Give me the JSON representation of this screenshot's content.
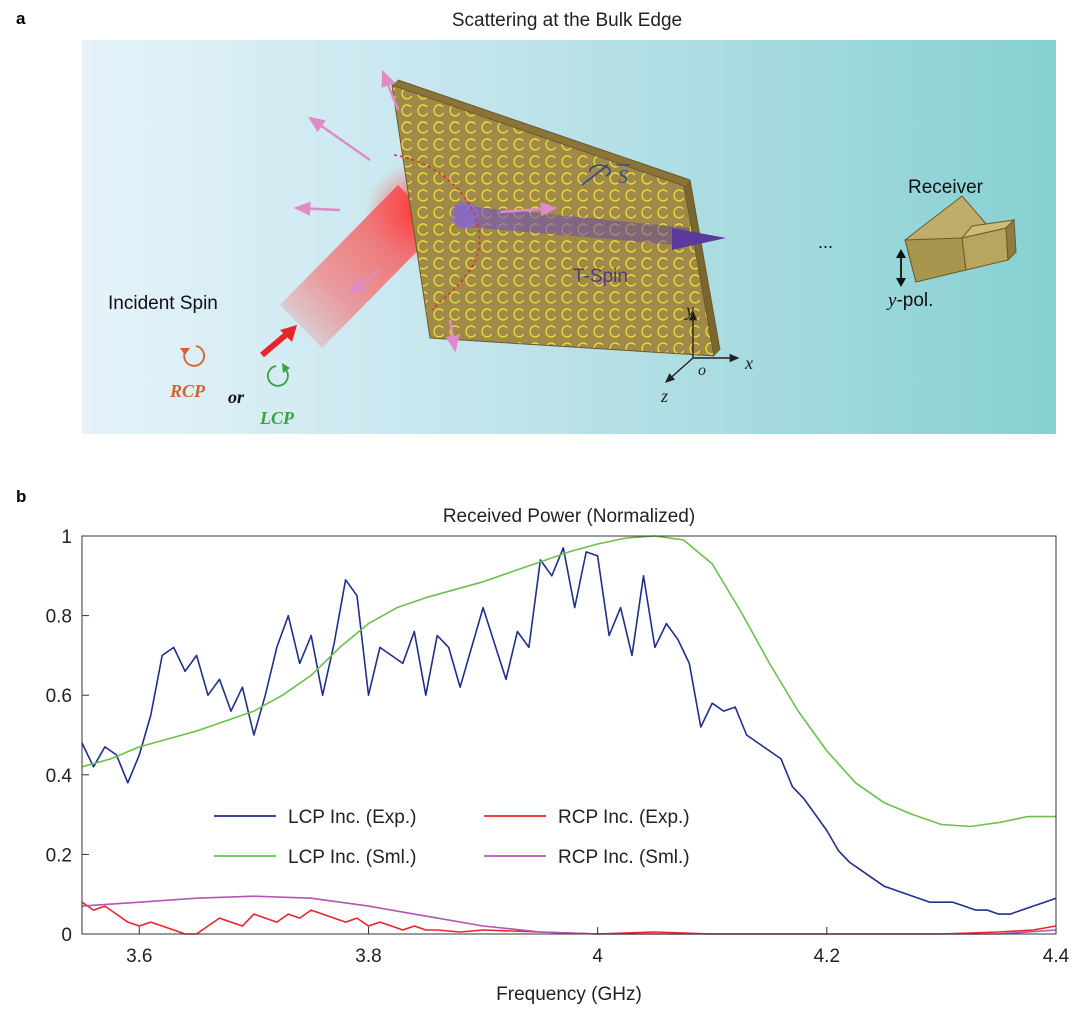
{
  "panel_a": {
    "label": "a",
    "title": "Scattering at the Bulk Edge",
    "incident_label": "Incident Spin",
    "rcp": "RCP",
    "or": "or",
    "lcp": "LCP",
    "spin_vector": "S",
    "tspin": "T-Spin",
    "receiver": "Receiver",
    "ypol_var": "y",
    "ypol_suffix": "-pol.",
    "ellipsis": "...",
    "axis_x": "x",
    "axis_y": "y",
    "axis_z": "z",
    "axis_o": "o",
    "colors": {
      "rcp": "#d4622a",
      "lcp": "#3aa33a",
      "scatter_arrows": "#e08ac8",
      "transmit_arrow": "#5a3a9a",
      "slab": "#a08a4a",
      "rings": "#f2e130"
    }
  },
  "panel_b": {
    "label": "b",
    "chart_data": {
      "type": "line",
      "title": "Received Power (Normalized)",
      "xlabel": "Frequency (GHz)",
      "ylabel": "",
      "xlim": [
        3.55,
        4.4
      ],
      "ylim": [
        0,
        1
      ],
      "xticks": [
        3.6,
        3.8,
        4.0,
        4.2,
        4.4
      ],
      "xtick_labels": [
        "3.6",
        "3.8",
        "4",
        "4.2",
        "4.4"
      ],
      "yticks": [
        0,
        0.2,
        0.4,
        0.6,
        0.8,
        1.0
      ],
      "ytick_labels": [
        "0",
        "0.2",
        "0.4",
        "0.6",
        "0.8",
        "1"
      ],
      "grid": false,
      "legend_position": "lower-center",
      "series": [
        {
          "name": "LCP Inc. (Exp.)",
          "color": "#1f2f8a",
          "x": [
            3.55,
            3.56,
            3.57,
            3.58,
            3.59,
            3.6,
            3.61,
            3.62,
            3.63,
            3.64,
            3.65,
            3.66,
            3.67,
            3.68,
            3.69,
            3.7,
            3.71,
            3.72,
            3.73,
            3.74,
            3.75,
            3.76,
            3.77,
            3.78,
            3.79,
            3.8,
            3.81,
            3.82,
            3.83,
            3.84,
            3.85,
            3.86,
            3.87,
            3.88,
            3.89,
            3.9,
            3.91,
            3.92,
            3.93,
            3.94,
            3.95,
            3.96,
            3.97,
            3.98,
            3.99,
            4.0,
            4.01,
            4.02,
            4.03,
            4.04,
            4.05,
            4.06,
            4.07,
            4.08,
            4.09,
            4.1,
            4.11,
            4.12,
            4.13,
            4.14,
            4.15,
            4.16,
            4.17,
            4.18,
            4.19,
            4.2,
            4.21,
            4.22,
            4.23,
            4.24,
            4.25,
            4.26,
            4.27,
            4.28,
            4.29,
            4.3,
            4.31,
            4.32,
            4.33,
            4.34,
            4.35,
            4.36,
            4.37,
            4.38,
            4.39,
            4.4
          ],
          "y": [
            0.48,
            0.42,
            0.47,
            0.45,
            0.38,
            0.45,
            0.55,
            0.7,
            0.72,
            0.66,
            0.7,
            0.6,
            0.64,
            0.56,
            0.62,
            0.5,
            0.6,
            0.72,
            0.8,
            0.68,
            0.75,
            0.6,
            0.73,
            0.89,
            0.85,
            0.6,
            0.72,
            0.7,
            0.68,
            0.76,
            0.6,
            0.75,
            0.72,
            0.62,
            0.72,
            0.82,
            0.73,
            0.64,
            0.76,
            0.72,
            0.94,
            0.9,
            0.97,
            0.82,
            0.96,
            0.95,
            0.75,
            0.82,
            0.7,
            0.9,
            0.72,
            0.78,
            0.74,
            0.68,
            0.52,
            0.58,
            0.56,
            0.57,
            0.5,
            0.48,
            0.46,
            0.44,
            0.37,
            0.34,
            0.3,
            0.26,
            0.21,
            0.18,
            0.16,
            0.14,
            0.12,
            0.11,
            0.1,
            0.09,
            0.08,
            0.08,
            0.08,
            0.07,
            0.06,
            0.06,
            0.05,
            0.05,
            0.06,
            0.07,
            0.08,
            0.09
          ]
        },
        {
          "name": "LCP Inc. (Sml.)",
          "color": "#6cc04a",
          "x": [
            3.55,
            3.575,
            3.6,
            3.625,
            3.65,
            3.675,
            3.7,
            3.725,
            3.75,
            3.775,
            3.8,
            3.825,
            3.85,
            3.875,
            3.9,
            3.925,
            3.95,
            3.975,
            4.0,
            4.025,
            4.05,
            4.075,
            4.1,
            4.125,
            4.15,
            4.175,
            4.2,
            4.225,
            4.25,
            4.275,
            4.3,
            4.325,
            4.35,
            4.375,
            4.4
          ],
          "y": [
            0.42,
            0.44,
            0.47,
            0.49,
            0.51,
            0.535,
            0.56,
            0.6,
            0.65,
            0.72,
            0.78,
            0.82,
            0.845,
            0.865,
            0.885,
            0.91,
            0.935,
            0.96,
            0.98,
            0.995,
            1.0,
            0.99,
            0.93,
            0.81,
            0.68,
            0.56,
            0.46,
            0.38,
            0.33,
            0.3,
            0.275,
            0.27,
            0.28,
            0.295,
            0.295
          ]
        },
        {
          "name": "RCP Inc. (Exp.)",
          "color": "#e8262a",
          "x": [
            3.55,
            3.56,
            3.57,
            3.58,
            3.59,
            3.6,
            3.61,
            3.62,
            3.63,
            3.64,
            3.65,
            3.66,
            3.67,
            3.68,
            3.69,
            3.7,
            3.71,
            3.72,
            3.73,
            3.74,
            3.75,
            3.76,
            3.77,
            3.78,
            3.79,
            3.8,
            3.81,
            3.82,
            3.83,
            3.84,
            3.85,
            3.86,
            3.88,
            3.9,
            3.95,
            4.0,
            4.05,
            4.1,
            4.15,
            4.2,
            4.25,
            4.3,
            4.35,
            4.38,
            4.4
          ],
          "y": [
            0.08,
            0.06,
            0.07,
            0.05,
            0.03,
            0.02,
            0.03,
            0.02,
            0.01,
            0.0,
            0.0,
            0.02,
            0.04,
            0.03,
            0.02,
            0.05,
            0.04,
            0.03,
            0.05,
            0.04,
            0.06,
            0.05,
            0.04,
            0.03,
            0.04,
            0.02,
            0.03,
            0.02,
            0.01,
            0.02,
            0.01,
            0.01,
            0.005,
            0.01,
            0.005,
            0.0,
            0.005,
            0.0,
            0.0,
            0.0,
            0.0,
            0.0,
            0.005,
            0.01,
            0.02
          ]
        },
        {
          "name": "RCP Inc. (Sml.)",
          "color": "#b455b4",
          "x": [
            3.55,
            3.6,
            3.65,
            3.7,
            3.75,
            3.8,
            3.85,
            3.9,
            3.95,
            4.0,
            4.05,
            4.1,
            4.15,
            4.2,
            4.25,
            4.3,
            4.35,
            4.4
          ],
          "y": [
            0.07,
            0.08,
            0.09,
            0.095,
            0.09,
            0.07,
            0.045,
            0.02,
            0.005,
            0.0,
            0.0,
            0.0,
            0.0,
            0.0,
            0.0,
            0.0,
            0.0,
            0.01
          ]
        }
      ]
    }
  }
}
